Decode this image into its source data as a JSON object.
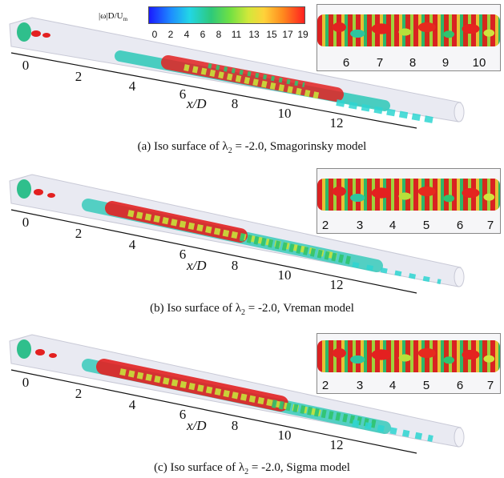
{
  "colorbar": {
    "title": "|ω|D/U",
    "title_sub": "m",
    "ticks": [
      "0",
      "2",
      "4",
      "6",
      "8",
      "11",
      "13",
      "15",
      "17",
      "19"
    ],
    "colors": [
      "#1a1aff",
      "#22d6e6",
      "#2ec97a",
      "#d2e83a",
      "#ff8a1e",
      "#ff2020"
    ]
  },
  "panels": [
    {
      "caption_prefix": "(a)  Iso surface of λ",
      "caption_sub": "2",
      "caption_suffix": " = -2.0, Smagorinsky model",
      "axis_label": "x/D",
      "axis_ticks": [
        "0",
        "2",
        "4",
        "6",
        "8",
        "10",
        "12"
      ],
      "inset_ticks": [
        "6",
        "7",
        "8",
        "9",
        "10"
      ]
    },
    {
      "caption_prefix": "(b)  Iso surface of λ",
      "caption_sub": "2",
      "caption_suffix": " = -2.0, Vreman model",
      "axis_label": "x/D",
      "axis_ticks": [
        "0",
        "2",
        "4",
        "6",
        "8",
        "10",
        "12"
      ],
      "inset_ticks": [
        "2",
        "3",
        "4",
        "5",
        "6",
        "7"
      ]
    },
    {
      "caption_prefix": "(c)  Iso surface of λ",
      "caption_sub": "2",
      "caption_suffix": " = -2.0, Sigma model",
      "axis_label": "x/D",
      "axis_ticks": [
        "0",
        "2",
        "4",
        "6",
        "8",
        "10",
        "12"
      ],
      "inset_ticks": [
        "2",
        "3",
        "4",
        "5",
        "6",
        "7"
      ]
    }
  ]
}
